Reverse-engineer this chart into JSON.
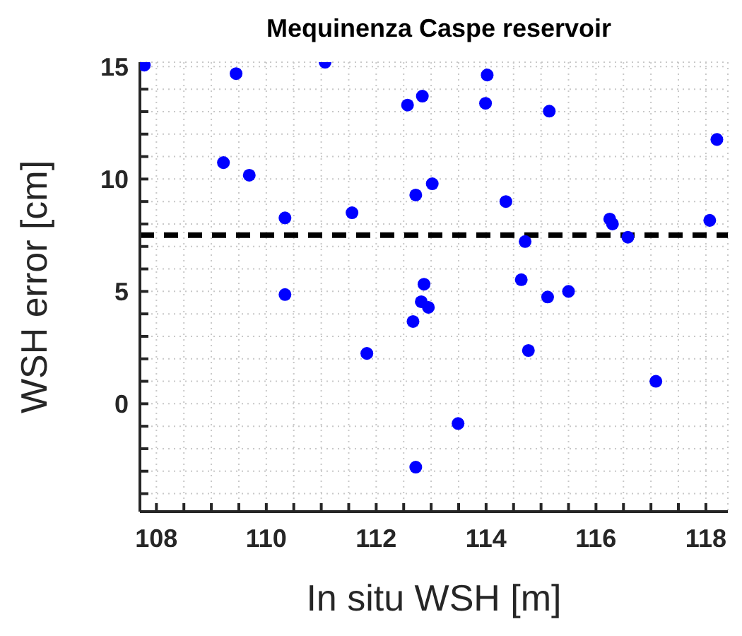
{
  "chart_data": {
    "type": "scatter",
    "title": "Mequinenza Caspe reservoir",
    "xlabel": "In situ WSH [m]",
    "ylabel": "WSH error [cm]",
    "x": [
      107.78,
      109.45,
      111.07,
      109.22,
      109.69,
      110.34,
      110.34,
      111.56,
      111.83,
      112.57,
      112.72,
      112.67,
      112.72,
      112.84,
      114.02,
      113.99,
      115.15,
      118.2,
      113.02,
      114.36,
      116.25,
      116.3,
      118.07,
      114.71,
      116.58,
      112.87,
      112.82,
      112.95,
      114.64,
      115.12,
      115.5,
      114.77,
      117.09,
      113.49
    ],
    "series": [
      {
        "color": "#0000ff",
        "values": [
          15.07,
          14.69,
          15.2,
          10.73,
          10.17,
          8.27,
          4.86,
          8.5,
          2.24,
          13.29,
          9.29,
          3.66,
          -2.82,
          13.69,
          14.63,
          13.37,
          13.02,
          11.76,
          9.79,
          9.0,
          8.22,
          8.0,
          8.16,
          7.22,
          7.41,
          5.32,
          4.54,
          4.29,
          5.52,
          4.75,
          5.0,
          2.37,
          1.0,
          -0.88
        ]
      }
    ],
    "xlim": [
      107.7,
      118.4
    ],
    "xticks": [
      108,
      {
        "value": 108.5,
        "label": null
      },
      {
        "value": 109,
        "label": null
      },
      {
        "value": 109.5,
        "label": null
      },
      110,
      {
        "value": 110.5,
        "label": null
      },
      {
        "value": 111,
        "label": null
      },
      {
        "value": 111.5,
        "label": null
      },
      112,
      {
        "value": 112.5,
        "label": null
      },
      {
        "value": 113,
        "label": null
      },
      {
        "value": 113.5,
        "label": null
      },
      114,
      {
        "value": 114.5,
        "label": null
      },
      {
        "value": 115,
        "label": null
      },
      {
        "value": 115.5,
        "label": null
      },
      116,
      {
        "value": 116.5,
        "label": null
      },
      {
        "value": 117,
        "label": null
      },
      {
        "value": 117.5,
        "label": null
      },
      118
    ],
    "ylim": [
      -4.8,
      15.2
    ],
    "yticks": [
      {
        "value": -4,
        "label": null
      },
      {
        "value": -3,
        "label": null
      },
      {
        "value": -2,
        "label": null
      },
      {
        "value": -1,
        "label": null
      },
      0,
      {
        "value": 1,
        "label": null
      },
      {
        "value": 2,
        "label": null
      },
      {
        "value": 3,
        "label": null
      },
      {
        "value": 4,
        "label": null
      },
      5,
      {
        "value": 6,
        "label": null
      },
      {
        "value": 7,
        "label": null
      },
      {
        "value": 8,
        "label": null
      },
      {
        "value": 9,
        "label": null
      },
      10,
      {
        "value": 11,
        "label": null
      },
      {
        "value": 12,
        "label": null
      },
      {
        "value": 13,
        "label": null
      },
      {
        "value": 14,
        "label": null
      },
      15
    ],
    "ref_lines": [
      {
        "axis": "y",
        "value": 7.5,
        "color": "#000000",
        "line_style": "dashed"
      }
    ],
    "grid": true,
    "marker": "circle"
  }
}
